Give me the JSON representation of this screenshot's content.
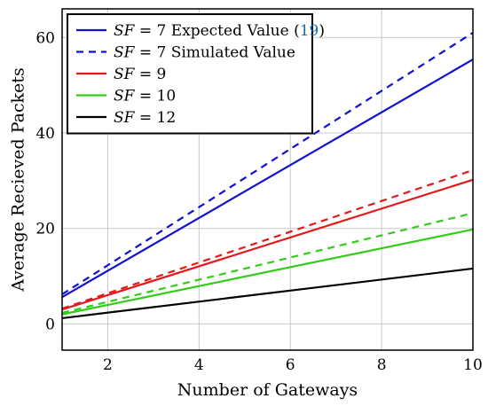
{
  "chart_data": {
    "type": "line",
    "title": "",
    "xlabel": "Number of Gateways",
    "ylabel": "Average Recieved Packets",
    "xlim": [
      1,
      10
    ],
    "ylim": [
      -5.5,
      66
    ],
    "xticks": [
      2,
      4,
      6,
      8,
      10
    ],
    "yticks": [
      0,
      20,
      40,
      60
    ],
    "grid": true,
    "legend_position": "top-left",
    "series": [
      {
        "name": "SF = 7 Expected Value (19)",
        "label_var": "SF",
        "label_rest": " = 7 Expected Value (",
        "label_ref": "19",
        "label_close": ")",
        "color": "#1010d0",
        "style": "solid",
        "in_legend": true,
        "x": [
          1,
          10
        ],
        "y": [
          5.6,
          55.4
        ]
      },
      {
        "name": "SF = 7 Simulated Value",
        "label_var": "SF",
        "label_rest": " = 7 Simulated Value",
        "label_ref": "",
        "label_close": "",
        "color": "#1010d0",
        "style": "dashed",
        "in_legend": true,
        "x": [
          1,
          10
        ],
        "y": [
          6.2,
          61.0
        ]
      },
      {
        "name": "SF = 9",
        "label_var": "SF",
        "label_rest": " = 9",
        "label_ref": "",
        "label_close": "",
        "color": "#e41a1a",
        "style": "solid",
        "in_legend": true,
        "x": [
          1,
          10
        ],
        "y": [
          3.0,
          30.2
        ]
      },
      {
        "name": "",
        "color": "#e41a1a",
        "style": "dashed",
        "in_legend": false,
        "x": [
          1,
          10
        ],
        "y": [
          3.2,
          32.2
        ]
      },
      {
        "name": "SF = 10",
        "label_var": "SF",
        "label_rest": " = 10",
        "label_ref": "",
        "label_close": "",
        "color": "#33cc1a",
        "style": "solid",
        "in_legend": true,
        "x": [
          1,
          10
        ],
        "y": [
          2.0,
          19.8
        ]
      },
      {
        "name": "",
        "color": "#33cc1a",
        "style": "dashed",
        "in_legend": false,
        "x": [
          1,
          10
        ],
        "y": [
          2.3,
          23.2
        ]
      },
      {
        "name": "SF = 12",
        "label_var": "SF",
        "label_rest": " = 12",
        "label_ref": "",
        "label_close": "",
        "color": "#000000",
        "style": "solid",
        "in_legend": true,
        "x": [
          1,
          10
        ],
        "y": [
          1.2,
          11.6
        ]
      }
    ]
  }
}
